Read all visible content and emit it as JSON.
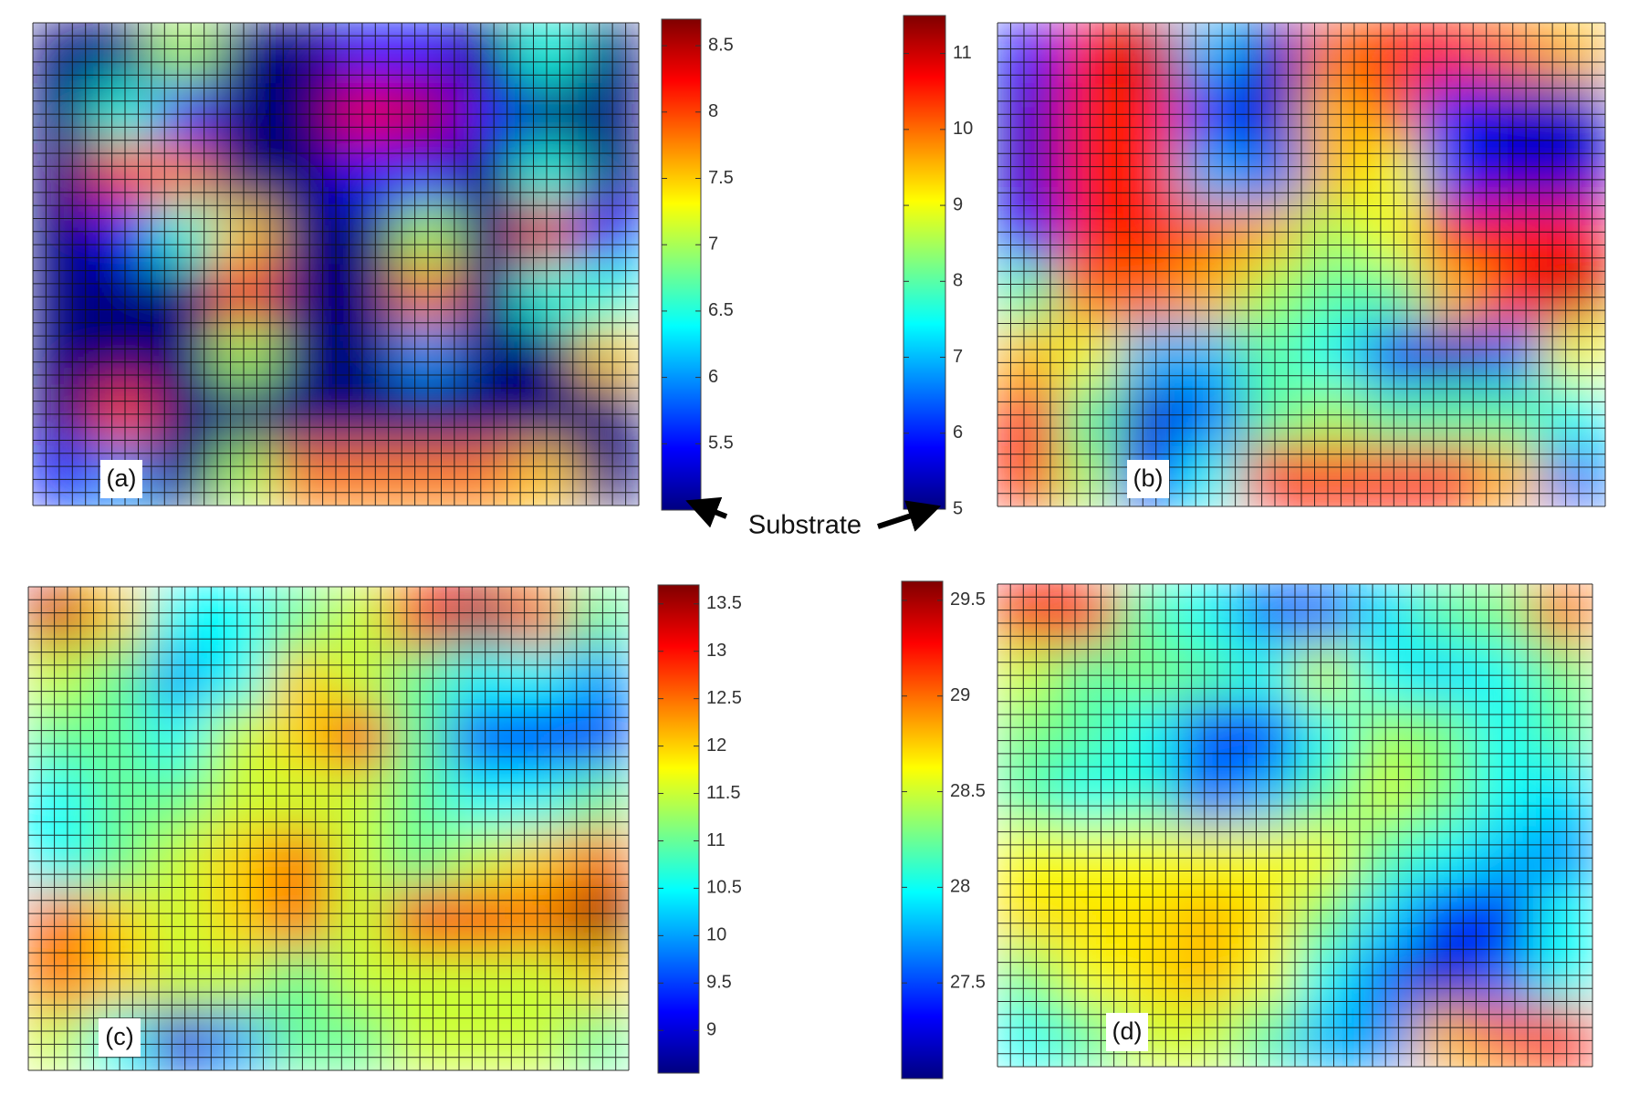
{
  "annotation": "Substrate",
  "chart_data": [
    {
      "type": "heatmap",
      "label": "(a)",
      "colormap": "jet",
      "clim": [
        5,
        8.7
      ],
      "cticks": [
        5.5,
        6,
        6.5,
        7,
        7.5,
        8,
        8.5
      ],
      "z": [
        [
          5,
          5,
          7,
          5,
          5,
          5.5,
          5.5,
          5,
          6.5,
          5
        ],
        [
          5,
          6.5,
          5.5,
          5,
          5,
          8.3,
          8.5,
          5.5,
          5,
          5
        ],
        [
          5,
          8,
          7.8,
          5,
          5,
          5.5,
          5.5,
          5,
          6.5,
          5
        ],
        [
          5,
          5.5,
          6.5,
          7.5,
          5,
          5,
          7,
          5,
          8.3,
          5.5
        ],
        [
          5,
          5,
          5,
          8.2,
          5,
          5,
          7.8,
          5,
          6.5,
          6.5
        ],
        [
          5,
          5,
          5,
          7,
          5,
          5,
          6,
          5,
          5,
          7.5
        ],
        [
          5,
          8,
          5,
          5,
          5,
          5,
          5,
          5,
          5,
          5
        ],
        [
          5.5,
          6,
          5,
          7,
          7.8,
          7.8,
          7.8,
          7.8,
          7.5,
          5
        ]
      ]
    },
    {
      "type": "heatmap",
      "label": "(b)",
      "colormap": "jet",
      "clim": [
        5,
        11.5
      ],
      "cticks": [
        5,
        6,
        7,
        8,
        9,
        10,
        11
      ],
      "z": [
        [
          6,
          10.5,
          11,
          7,
          5.5,
          10,
          10.5,
          10.5,
          10,
          9.5
        ],
        [
          5.5,
          10.5,
          10.5,
          6,
          5.5,
          9.5,
          10,
          6,
          5.5,
          5.5
        ],
        [
          5.5,
          10.5,
          10.5,
          7,
          6.5,
          9.5,
          9,
          6,
          5.5,
          5.5
        ],
        [
          6,
          10.5,
          10.5,
          10,
          9.5,
          8.5,
          9,
          10.5,
          10.5,
          10.5
        ],
        [
          8,
          10,
          10,
          9.5,
          8.5,
          8,
          8,
          9.5,
          10.5,
          11
        ],
        [
          9.5,
          9,
          7,
          7,
          8,
          7.5,
          6,
          5.5,
          6.5,
          9
        ],
        [
          10.5,
          8,
          5.5,
          6.5,
          8,
          8.5,
          8,
          8,
          8,
          7.5
        ],
        [
          10.5,
          8.5,
          6,
          7.5,
          10.5,
          10.5,
          10.5,
          10.5,
          9.5,
          6.5
        ]
      ]
    },
    {
      "type": "heatmap",
      "label": "(c)",
      "colormap": "jet",
      "clim": [
        8.55,
        13.7
      ],
      "cticks": [
        9,
        9.5,
        10,
        10.5,
        11,
        11.5,
        12,
        12.5,
        13,
        13.5
      ],
      "z": [
        [
          13.3,
          12,
          10.5,
          10.5,
          11,
          11.5,
          13,
          13.5,
          12.5,
          11
        ],
        [
          11.5,
          11,
          10,
          10.5,
          12,
          11.5,
          11,
          10.5,
          10.5,
          10
        ],
        [
          11,
          11,
          10.5,
          11.5,
          12,
          12.8,
          11,
          9.5,
          9.2,
          9.5
        ],
        [
          10.5,
          11,
          11,
          11.5,
          11.5,
          11.5,
          11,
          10.5,
          10.5,
          11
        ],
        [
          10.5,
          11,
          11.5,
          12,
          12.5,
          11.5,
          11,
          11.5,
          12,
          12.5
        ],
        [
          12.5,
          12,
          11.5,
          12,
          12.5,
          11.5,
          12.8,
          12.8,
          12.5,
          13.6
        ],
        [
          12.5,
          12,
          11.5,
          11.5,
          11,
          11.5,
          11.5,
          11.5,
          11.5,
          12
        ],
        [
          11.5,
          10.5,
          9,
          10,
          11,
          11,
          11.5,
          11.5,
          11.5,
          11
        ]
      ]
    },
    {
      "type": "heatmap",
      "label": "(d)",
      "colormap": "jet",
      "clim": [
        27,
        29.6
      ],
      "cticks": [
        27.5,
        28,
        28.5,
        29,
        29.5
      ],
      "z": [
        [
          29.3,
          29.2,
          28.2,
          28,
          27.6,
          27.6,
          27.9,
          28.2,
          28.3,
          29
        ],
        [
          28.5,
          28.2,
          28.3,
          28.2,
          28,
          28.5,
          28,
          27.9,
          28,
          28.3
        ],
        [
          28.3,
          28.2,
          28,
          27.5,
          27.4,
          28,
          28.4,
          28.3,
          28,
          28.2
        ],
        [
          28.2,
          28,
          28.1,
          27.6,
          27.8,
          28.2,
          28.5,
          28.3,
          28,
          27.9
        ],
        [
          28.6,
          28.6,
          28.6,
          28.6,
          28.6,
          28.6,
          28.2,
          28,
          27.8,
          27.7
        ],
        [
          28.7,
          28.7,
          28.7,
          28.8,
          28.7,
          28.3,
          27.9,
          27.4,
          27.3,
          28
        ],
        [
          28.3,
          28.6,
          28.7,
          28.8,
          28.6,
          28,
          27.6,
          27.2,
          27.6,
          28
        ],
        [
          28,
          28.2,
          28.5,
          28.5,
          28.2,
          27.8,
          27.7,
          28.8,
          29,
          29.2
        ]
      ]
    }
  ]
}
